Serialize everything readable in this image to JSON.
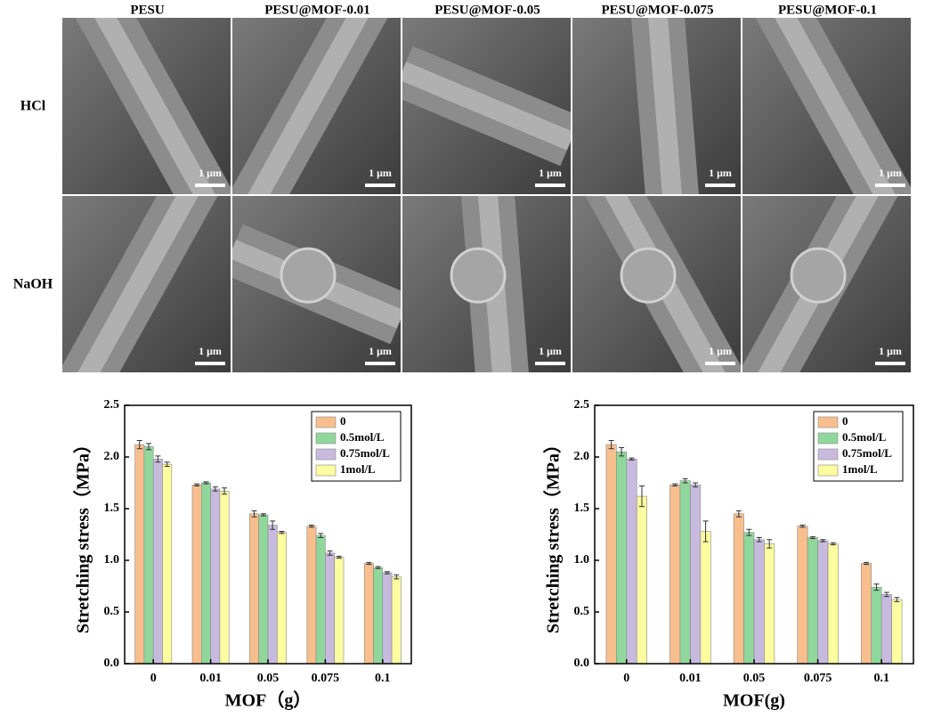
{
  "figure": {
    "column_labels": [
      "PESU",
      "PESU@MOF-0.01",
      "PESU@MOF-0.05",
      "PESU@MOF-0.075",
      "PESU@MOF-0.1"
    ],
    "row_labels": [
      "HCl",
      "NaOH"
    ],
    "scale_bar": "1 μm"
  },
  "chart_data": [
    {
      "type": "bar",
      "ylabel": "Stretching stress（MPa）",
      "xlabel": "MOF（g）",
      "categories": [
        "0",
        "0.01",
        "0.05",
        "0.075",
        "0.1"
      ],
      "series": [
        {
          "name": "0",
          "color": "#f8bf8e",
          "values": [
            2.12,
            1.73,
            1.45,
            1.33,
            0.97
          ],
          "errors": [
            0.04,
            0.01,
            0.03,
            0.01,
            0.01
          ]
        },
        {
          "name": "0.5mol/L",
          "color": "#90d79c",
          "values": [
            2.1,
            1.75,
            1.44,
            1.24,
            0.93
          ],
          "errors": [
            0.03,
            0.01,
            0.01,
            0.02,
            0.01
          ]
        },
        {
          "name": "0.75mol/L",
          "color": "#c8badf",
          "values": [
            1.98,
            1.69,
            1.34,
            1.07,
            0.88
          ],
          "errors": [
            0.03,
            0.02,
            0.04,
            0.02,
            0.01
          ]
        },
        {
          "name": "1mol/L",
          "color": "#fcfca0",
          "values": [
            1.93,
            1.67,
            1.27,
            1.03,
            0.84
          ],
          "errors": [
            0.02,
            0.03,
            0.01,
            0.01,
            0.02
          ]
        }
      ],
      "ylim": [
        0,
        2.5
      ],
      "yticks": [
        {
          "value": 0,
          "label": "0.0"
        },
        0.5,
        {
          "value": 1,
          "label": "1.0"
        },
        1.5,
        {
          "value": 2,
          "label": "2.0"
        },
        2.5
      ],
      "legend": "upper right"
    },
    {
      "type": "bar",
      "ylabel": "Stretching stress（MPa）",
      "xlabel": "MOF(g)",
      "categories": [
        "0",
        "0.01",
        "0.05",
        "0.075",
        "0.1"
      ],
      "series": [
        {
          "name": "0",
          "color": "#f8bf8e",
          "values": [
            2.12,
            1.73,
            1.45,
            1.33,
            0.97
          ],
          "errors": [
            0.04,
            0.01,
            0.03,
            0.01,
            0.01
          ]
        },
        {
          "name": "0.5mol/L",
          "color": "#90d79c",
          "values": [
            2.05,
            1.77,
            1.27,
            1.22,
            0.74
          ],
          "errors": [
            0.04,
            0.02,
            0.03,
            0.01,
            0.03
          ]
        },
        {
          "name": "0.75mol/L",
          "color": "#c8badf",
          "values": [
            1.98,
            1.73,
            1.2,
            1.19,
            0.67
          ],
          "errors": [
            0.01,
            0.02,
            0.02,
            0.01,
            0.02
          ]
        },
        {
          "name": "1mol/L",
          "color": "#fcfca0",
          "values": [
            1.62,
            1.28,
            1.16,
            1.16,
            0.62
          ],
          "errors": [
            0.1,
            0.1,
            0.04,
            0.01,
            0.02
          ]
        }
      ],
      "ylim": [
        0,
        2.5
      ],
      "yticks": [
        {
          "value": 0,
          "label": "0.0"
        },
        0.5,
        {
          "value": 1,
          "label": "1.0"
        },
        1.5,
        {
          "value": 2,
          "label": "2.0"
        },
        2.5
      ],
      "legend": "upper right"
    }
  ]
}
